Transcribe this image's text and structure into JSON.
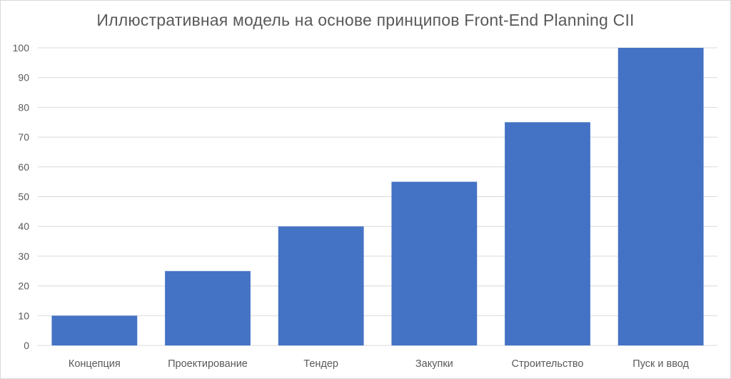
{
  "chart_data": {
    "type": "bar",
    "title": "Иллюстративная модель на основе принципов Front-End Planning CII",
    "xlabel": "",
    "ylabel": "",
    "categories": [
      "Концепция",
      "Проектирование",
      "Тендер",
      "Закупки",
      "Строительство",
      "Пуск и ввод"
    ],
    "values": [
      10,
      25,
      40,
      55,
      75,
      100
    ],
    "ylim": [
      0,
      100
    ],
    "yticks": [
      0,
      10,
      20,
      30,
      40,
      50,
      60,
      70,
      80,
      90,
      100
    ],
    "grid": true,
    "legend": "none",
    "bar_color": "#4472C4",
    "grid_color": "#d9d9d9"
  }
}
